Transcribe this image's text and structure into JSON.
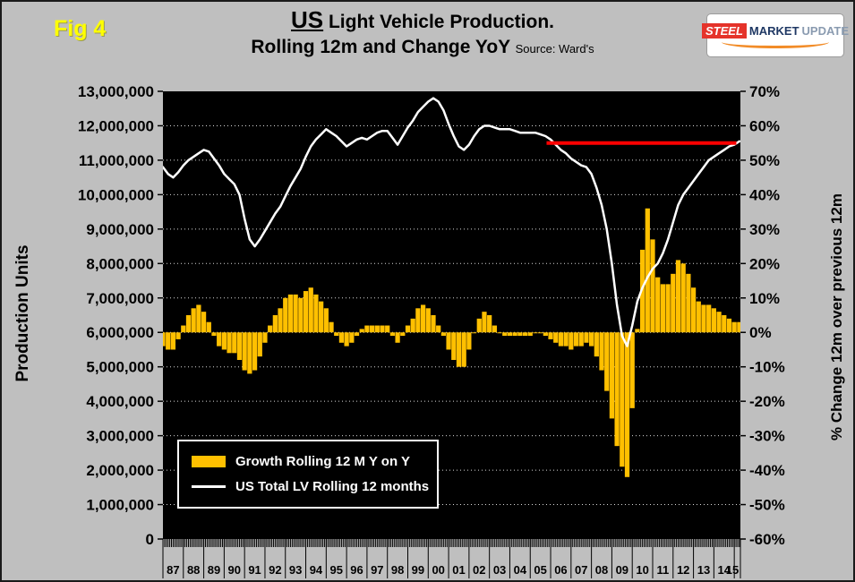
{
  "header": {
    "figure_label": "Fig 4",
    "title_us": "US",
    "title_rest": " Light Vehicle Production.",
    "title_line2": "Rolling 12m and Change YoY",
    "source": "Source: Ward's"
  },
  "logo": {
    "steel": "STEEL",
    "market": "MARKET",
    "update": "UPDATE"
  },
  "colors": {
    "fig_label": "#FFFF00",
    "page_bg": "#BFBFBF",
    "plot_bg": "#000000",
    "bars": "#FFC000",
    "line": "#FFFFFF",
    "reference": "#FF0000",
    "logo_red": "#E5332A",
    "logo_navy": "#1F3864",
    "logo_orange": "#F28C28"
  },
  "legend": {
    "items": [
      {
        "label": "Growth Rolling 12 M Y on Y",
        "color": "#FFC000",
        "swatch": "bar"
      },
      {
        "label": "US Total LV Rolling 12 months",
        "color": "#FFFFFF",
        "swatch": "line"
      }
    ]
  },
  "chart_data": {
    "type": "combo",
    "plot_bg": "#000000",
    "grid_color": "#FFFFFF",
    "left_axis": {
      "title": "Production Units",
      "min": 0,
      "max": 13000000,
      "step": 1000000
    },
    "right_axis": {
      "title": "% Change 12m over previous 12m",
      "min": -60,
      "max": 70,
      "step": 10,
      "unit": "%"
    },
    "x_axis": {
      "start": 1987,
      "end": 2015.3,
      "year_labels": [
        "87",
        "88",
        "89",
        "90",
        "91",
        "92",
        "93",
        "94",
        "95",
        "96",
        "97",
        "98",
        "99",
        "00",
        "01",
        "02",
        "03",
        "04",
        "05",
        "06",
        "07",
        "08",
        "09",
        "10",
        "11",
        "12",
        "13",
        "14",
        "15"
      ]
    },
    "series": [
      {
        "name": "Growth Rolling 12 M Y on Y",
        "type": "bar",
        "axis": "right",
        "color": "#FFC000",
        "x_start": 1987,
        "x_step": 0.25,
        "values": [
          -4,
          -5,
          -5,
          -2,
          2,
          5,
          7,
          8,
          6,
          3,
          -1,
          -4,
          -5,
          -6,
          -6,
          -8,
          -11,
          -12,
          -11,
          -7,
          -3,
          2,
          5,
          7,
          10,
          11,
          11,
          10,
          12,
          13,
          11,
          9,
          7,
          3,
          -1,
          -3,
          -4,
          -3,
          -1,
          1,
          2,
          2,
          2,
          2,
          2,
          -1,
          -3,
          -1,
          2,
          4,
          7,
          8,
          7,
          5,
          2,
          -1,
          -5,
          -8,
          -10,
          -10,
          -5,
          0,
          4,
          6,
          5,
          2,
          0,
          -1,
          -1,
          -1,
          -1,
          -1,
          -1,
          0,
          0,
          -1,
          -2,
          -3,
          -4,
          -4,
          -5,
          -4,
          -4,
          -3,
          -4,
          -7,
          -11,
          -17,
          -25,
          -33,
          -39,
          -42,
          -22,
          1,
          24,
          36,
          27,
          16,
          14,
          14,
          17,
          21,
          20,
          17,
          13,
          9,
          8,
          8,
          7,
          6,
          5,
          4,
          3,
          3
        ]
      },
      {
        "name": "US Total LV Rolling 12 months",
        "type": "line",
        "axis": "left",
        "color": "#FFFFFF",
        "width": 2.5,
        "x_start": 1987,
        "x_step": 0.25,
        "values": [
          10800000,
          10600000,
          10500000,
          10650000,
          10850000,
          11000000,
          11100000,
          11200000,
          11300000,
          11250000,
          11050000,
          10850000,
          10600000,
          10450000,
          10300000,
          10000000,
          9300000,
          8700000,
          8500000,
          8700000,
          8950000,
          9200000,
          9450000,
          9650000,
          9950000,
          10250000,
          10500000,
          10750000,
          11100000,
          11400000,
          11600000,
          11750000,
          11900000,
          11800000,
          11700000,
          11550000,
          11400000,
          11500000,
          11600000,
          11650000,
          11600000,
          11700000,
          11800000,
          11850000,
          11850000,
          11650000,
          11450000,
          11700000,
          11950000,
          12150000,
          12400000,
          12550000,
          12700000,
          12800000,
          12700000,
          12450000,
          12050000,
          11700000,
          11400000,
          11300000,
          11450000,
          11700000,
          11900000,
          12000000,
          12000000,
          11950000,
          11900000,
          11900000,
          11900000,
          11850000,
          11800000,
          11800000,
          11800000,
          11800000,
          11750000,
          11700000,
          11600000,
          11450000,
          11300000,
          11200000,
          11050000,
          10950000,
          10850000,
          10800000,
          10600000,
          10200000,
          9700000,
          9000000,
          8000000,
          6800000,
          5900000,
          5600000,
          6200000,
          6900000,
          7300000,
          7600000,
          7850000,
          8000000,
          8300000,
          8700000,
          9200000,
          9700000,
          10000000,
          10200000,
          10400000,
          10600000,
          10800000,
          11000000,
          11100000,
          11200000,
          11300000,
          11400000,
          11450000,
          11550000
        ]
      },
      {
        "name": "reference-line-red",
        "type": "line",
        "axis": "left",
        "color": "#FF0000",
        "width": 4,
        "x": [
          2005.8,
          2015.1
        ],
        "values": [
          11500000,
          11500000
        ]
      }
    ]
  }
}
